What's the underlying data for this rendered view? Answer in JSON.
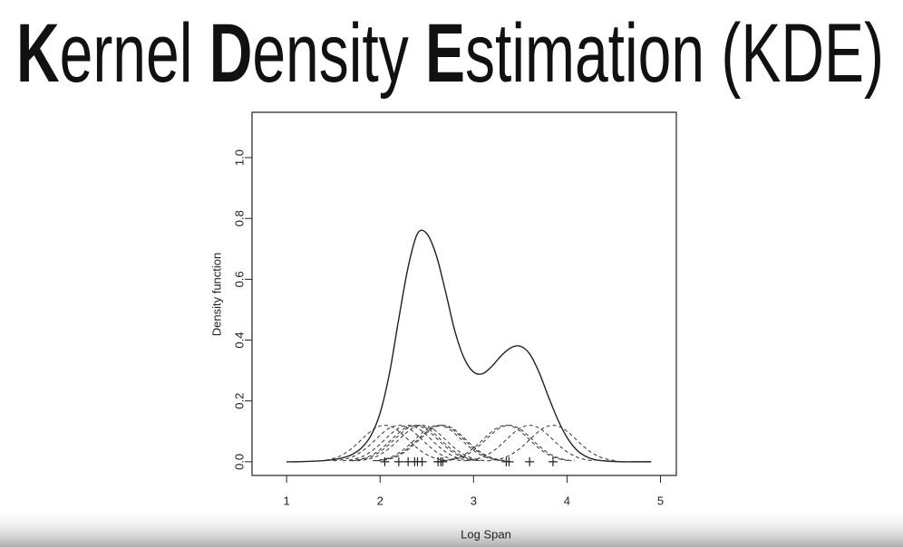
{
  "slide": {
    "title_words": [
      {
        "bold": "K",
        "rest": "ernel"
      },
      {
        "bold": "D",
        "rest": "ensity"
      },
      {
        "bold": "E",
        "rest": "stimation"
      },
      {
        "rest": "(KDE)"
      }
    ]
  },
  "chart_data": {
    "type": "line",
    "x_label": "Log Span",
    "y_label": "Density function",
    "xlim": [
      0.63,
      5.17
    ],
    "ylim": [
      -0.045,
      1.149
    ],
    "xticks": [
      1,
      2,
      3,
      4,
      5
    ],
    "yticks": [
      {
        "value": 0,
        "label": "0.0"
      },
      0.2,
      0.4,
      0.6,
      0.8,
      {
        "value": 1,
        "label": "1.0"
      }
    ],
    "x": [
      1.0,
      1.1,
      1.2,
      1.3,
      1.4,
      1.5,
      1.6,
      1.7,
      1.8,
      1.9,
      2.0,
      2.1,
      2.2,
      2.3,
      2.4,
      2.5,
      2.6,
      2.7,
      2.8,
      2.9,
      3.0,
      3.1,
      3.2,
      3.3,
      3.4,
      3.5,
      3.6,
      3.7,
      3.8,
      3.9,
      4.0,
      4.1,
      4.2,
      4.3,
      4.4,
      4.5,
      4.6,
      4.7,
      4.8,
      4.9
    ],
    "series": [
      {
        "color": "#222222",
        "dashed": false,
        "values": [
          0,
          0,
          0.001,
          0.002,
          0.004,
          0.007,
          0.013,
          0.024,
          0.045,
          0.085,
          0.16,
          0.29,
          0.47,
          0.64,
          0.75,
          0.75,
          0.68,
          0.56,
          0.43,
          0.34,
          0.295,
          0.29,
          0.315,
          0.35,
          0.375,
          0.38,
          0.355,
          0.295,
          0.215,
          0.14,
          0.08,
          0.04,
          0.018,
          0.007,
          0.003,
          0.001,
          0,
          0,
          0,
          0
        ]
      },
      {
        "color": "#333333",
        "dashed": true,
        "x": [
          1.35,
          1.45,
          1.55,
          1.65,
          1.75,
          1.85,
          1.95,
          2.05,
          2.15,
          2.25,
          2.35,
          2.45,
          2.55,
          2.65,
          2.75
        ],
        "values": [
          0.003,
          0.007,
          0.016,
          0.033,
          0.058,
          0.087,
          0.111,
          0.12,
          0.111,
          0.087,
          0.058,
          0.033,
          0.016,
          0.007,
          0.003
        ]
      },
      {
        "color": "#333333",
        "dashed": true,
        "x": [
          1.5,
          1.6,
          1.7,
          1.8,
          1.9,
          2.0,
          2.1,
          2.2,
          2.3,
          2.4,
          2.5,
          2.6,
          2.7,
          2.8,
          2.9
        ],
        "values": [
          0.003,
          0.007,
          0.016,
          0.033,
          0.058,
          0.087,
          0.111,
          0.12,
          0.111,
          0.087,
          0.058,
          0.033,
          0.016,
          0.007,
          0.003
        ]
      },
      {
        "color": "#333333",
        "dashed": true,
        "x": [
          1.6,
          1.7,
          1.8,
          1.9,
          2.0,
          2.1,
          2.2,
          2.3,
          2.4,
          2.5,
          2.6,
          2.7,
          2.8,
          2.9,
          3.0
        ],
        "values": [
          0.003,
          0.007,
          0.016,
          0.033,
          0.058,
          0.087,
          0.111,
          0.12,
          0.111,
          0.087,
          0.058,
          0.033,
          0.016,
          0.007,
          0.003
        ]
      },
      {
        "color": "#333333",
        "dashed": true,
        "x": [
          1.67,
          1.77,
          1.87,
          1.97,
          2.07,
          2.17,
          2.27,
          2.37,
          2.47,
          2.57,
          2.67,
          2.77,
          2.87,
          2.97,
          3.07
        ],
        "values": [
          0.003,
          0.007,
          0.016,
          0.033,
          0.058,
          0.087,
          0.111,
          0.12,
          0.111,
          0.087,
          0.058,
          0.033,
          0.016,
          0.007,
          0.003
        ]
      },
      {
        "color": "#333333",
        "dashed": true,
        "x": [
          1.7,
          1.8,
          1.9,
          2.0,
          2.1,
          2.2,
          2.3,
          2.4,
          2.5,
          2.6,
          2.7,
          2.8,
          2.9,
          3.0,
          3.1
        ],
        "values": [
          0.003,
          0.007,
          0.016,
          0.033,
          0.058,
          0.087,
          0.111,
          0.12,
          0.111,
          0.087,
          0.058,
          0.033,
          0.016,
          0.007,
          0.003
        ]
      },
      {
        "color": "#333333",
        "dashed": true,
        "x": [
          1.75,
          1.85,
          1.95,
          2.05,
          2.15,
          2.25,
          2.35,
          2.45,
          2.55,
          2.65,
          2.75,
          2.85,
          2.95,
          3.05,
          3.15
        ],
        "values": [
          0.003,
          0.007,
          0.016,
          0.033,
          0.058,
          0.087,
          0.111,
          0.12,
          0.111,
          0.087,
          0.058,
          0.033,
          0.016,
          0.007,
          0.003
        ]
      },
      {
        "color": "#333333",
        "dashed": true,
        "x": [
          1.92,
          2.02,
          2.12,
          2.22,
          2.32,
          2.42,
          2.52,
          2.62,
          2.72,
          2.82,
          2.92,
          3.02,
          3.12,
          3.22,
          3.32
        ],
        "values": [
          0.003,
          0.007,
          0.016,
          0.033,
          0.058,
          0.087,
          0.111,
          0.12,
          0.111,
          0.087,
          0.058,
          0.033,
          0.016,
          0.007,
          0.003
        ]
      },
      {
        "color": "#333333",
        "dashed": true,
        "x": [
          1.95,
          2.05,
          2.15,
          2.25,
          2.35,
          2.45,
          2.55,
          2.65,
          2.75,
          2.85,
          2.95,
          3.05,
          3.15,
          3.25,
          3.35
        ],
        "values": [
          0.003,
          0.007,
          0.016,
          0.033,
          0.058,
          0.087,
          0.111,
          0.12,
          0.111,
          0.087,
          0.058,
          0.033,
          0.016,
          0.007,
          0.003
        ]
      },
      {
        "color": "#333333",
        "dashed": true,
        "x": [
          1.97,
          2.07,
          2.17,
          2.27,
          2.37,
          2.47,
          2.57,
          2.67,
          2.77,
          2.87,
          2.97,
          3.07,
          3.17,
          3.27,
          3.37
        ],
        "values": [
          0.003,
          0.007,
          0.016,
          0.033,
          0.058,
          0.087,
          0.111,
          0.12,
          0.111,
          0.087,
          0.058,
          0.033,
          0.016,
          0.007,
          0.003
        ]
      },
      {
        "color": "#333333",
        "dashed": true,
        "x": [
          2.65,
          2.75,
          2.85,
          2.95,
          3.05,
          3.15,
          3.25,
          3.35,
          3.45,
          3.55,
          3.65,
          3.75,
          3.85,
          3.95,
          4.05
        ],
        "values": [
          0.003,
          0.007,
          0.016,
          0.033,
          0.058,
          0.087,
          0.111,
          0.12,
          0.111,
          0.087,
          0.058,
          0.033,
          0.016,
          0.007,
          0.003
        ]
      },
      {
        "color": "#333333",
        "dashed": true,
        "x": [
          2.68,
          2.78,
          2.88,
          2.98,
          3.08,
          3.18,
          3.28,
          3.38,
          3.48,
          3.58,
          3.68,
          3.78,
          3.88,
          3.98,
          4.08
        ],
        "values": [
          0.003,
          0.007,
          0.016,
          0.033,
          0.058,
          0.087,
          0.111,
          0.12,
          0.111,
          0.087,
          0.058,
          0.033,
          0.016,
          0.007,
          0.003
        ]
      },
      {
        "color": "#333333",
        "dashed": true,
        "x": [
          2.9,
          3.0,
          3.1,
          3.2,
          3.3,
          3.4,
          3.5,
          3.6,
          3.7,
          3.8,
          3.9,
          4.0,
          4.1,
          4.2,
          4.3
        ],
        "values": [
          0.003,
          0.007,
          0.016,
          0.033,
          0.058,
          0.087,
          0.111,
          0.12,
          0.111,
          0.087,
          0.058,
          0.033,
          0.016,
          0.007,
          0.003
        ]
      },
      {
        "color": "#333333",
        "dashed": true,
        "x": [
          3.15,
          3.25,
          3.35,
          3.45,
          3.55,
          3.65,
          3.75,
          3.85,
          3.95,
          4.05,
          4.15,
          4.25,
          4.35,
          4.45,
          4.55
        ],
        "values": [
          0.003,
          0.007,
          0.016,
          0.033,
          0.058,
          0.087,
          0.111,
          0.12,
          0.111,
          0.087,
          0.058,
          0.033,
          0.016,
          0.007,
          0.003
        ]
      }
    ],
    "rug": [
      2.05,
      2.2,
      2.3,
      2.37,
      2.4,
      2.45,
      2.62,
      2.65,
      2.67,
      3.35,
      3.38,
      3.6,
      3.85
    ]
  }
}
